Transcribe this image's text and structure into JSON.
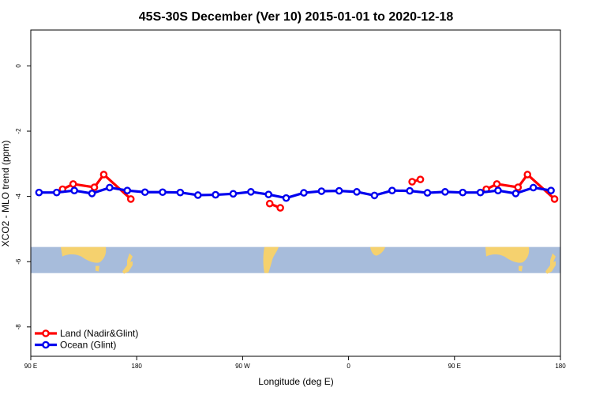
{
  "chart_data": {
    "type": "line",
    "title": "45S-30S December (Ver 10)   2015-01-01 to 2020-12-18",
    "xlabel": "Longitude (deg E)",
    "ylabel": "XCO2 - MLO trend (ppm)",
    "xlim": [
      90,
      540
    ],
    "ylim": [
      -8.9,
      1.1
    ],
    "x_ticks": [
      {
        "value": 90,
        "label": "90 E"
      },
      {
        "value": 180,
        "label": "180"
      },
      {
        "value": 270,
        "label": "90 W"
      },
      {
        "value": 360,
        "label": "0"
      },
      {
        "value": 450,
        "label": "90 E"
      },
      {
        "value": 540,
        "label": "180"
      }
    ],
    "y_ticks": [
      {
        "value": 0,
        "label": "0"
      },
      {
        "value": -2,
        "label": "-2"
      },
      {
        "value": -4,
        "label": "-4"
      },
      {
        "value": -6,
        "label": "-6"
      },
      {
        "value": -8,
        "label": "-8"
      }
    ],
    "map_strip": {
      "y_range": [
        -6.35,
        -5.55
      ],
      "ocean_color": "#a7bcdb",
      "land_color": "#f5d16e"
    },
    "legend": {
      "position": "bottom-left"
    },
    "series": [
      {
        "name": "Land (Nadir&Glint)",
        "color": "#ff0000",
        "points": [
          [
            117,
            -3.78
          ],
          [
            126,
            -3.62
          ],
          [
            144,
            -3.72
          ],
          [
            152,
            -3.33
          ],
          [
            175,
            -4.08
          ],
          [
            293,
            -4.22
          ],
          [
            302,
            -4.35
          ],
          [
            414,
            -3.55
          ],
          [
            421,
            -3.48
          ],
          [
            477,
            -3.78
          ],
          [
            486,
            -3.62
          ],
          [
            504,
            -3.72
          ],
          [
            512,
            -3.33
          ],
          [
            535,
            -4.08
          ]
        ],
        "segments": [
          [
            0,
            4
          ],
          [
            5,
            6
          ],
          [
            7,
            8
          ],
          [
            9,
            13
          ]
        ]
      },
      {
        "name": "Ocean (Glint)",
        "color": "#0000ee",
        "points": [
          [
            97,
            -3.88
          ],
          [
            112,
            -3.88
          ],
          [
            127,
            -3.82
          ],
          [
            142,
            -3.91
          ],
          [
            157,
            -3.73
          ],
          [
            172,
            -3.82
          ],
          [
            187,
            -3.87
          ],
          [
            202,
            -3.87
          ],
          [
            217,
            -3.88
          ],
          [
            232,
            -3.96
          ],
          [
            247,
            -3.95
          ],
          [
            262,
            -3.92
          ],
          [
            277,
            -3.86
          ],
          [
            292,
            -3.94
          ],
          [
            307,
            -4.05
          ],
          [
            322,
            -3.89
          ],
          [
            337,
            -3.84
          ],
          [
            352,
            -3.83
          ],
          [
            367,
            -3.86
          ],
          [
            382,
            -3.97
          ],
          [
            397,
            -3.82
          ],
          [
            412,
            -3.83
          ],
          [
            427,
            -3.89
          ],
          [
            442,
            -3.86
          ],
          [
            457,
            -3.88
          ],
          [
            472,
            -3.88
          ],
          [
            487,
            -3.82
          ],
          [
            502,
            -3.91
          ],
          [
            517,
            -3.73
          ],
          [
            532,
            -3.82
          ]
        ],
        "segments": [
          [
            0,
            29
          ]
        ]
      }
    ]
  }
}
